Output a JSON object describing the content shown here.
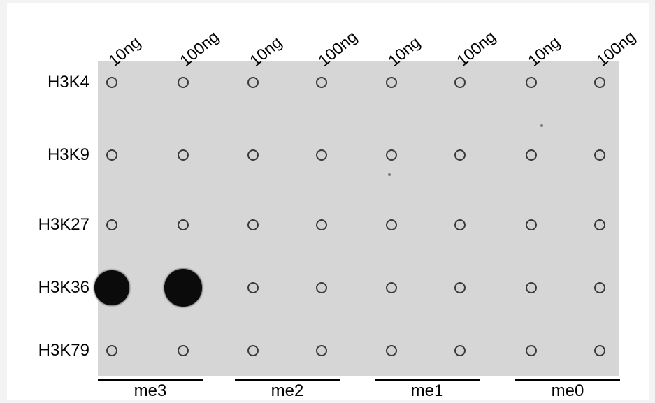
{
  "amounts": [
    "10ng",
    "100ng",
    "10ng",
    "100ng",
    "10ng",
    "100ng",
    "10ng",
    "100ng"
  ],
  "rows": [
    "H3K4",
    "H3K9",
    "H3K27",
    "H3K36",
    "H3K79"
  ],
  "groups": [
    "me3",
    "me2",
    "me1",
    "me0"
  ],
  "signal": [
    [
      0,
      0,
      0,
      0,
      0,
      0,
      0,
      0
    ],
    [
      0,
      0,
      0,
      0,
      0,
      0,
      0,
      0
    ],
    [
      0,
      0,
      0,
      0,
      0,
      0,
      0,
      0
    ],
    [
      0.8,
      1.0,
      0,
      0,
      0,
      0,
      0,
      0
    ],
    [
      0,
      0,
      0,
      0,
      0,
      0,
      0,
      0
    ]
  ],
  "colors": {
    "membrane": "#d6d6d6",
    "strong_dot": "#0b0b0b",
    "faint_ring": "#3a3a3a"
  }
}
